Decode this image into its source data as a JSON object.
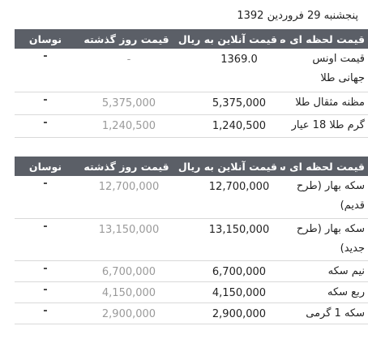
{
  "date": "پنجشنبه 29 فروردین 1392",
  "gold": {
    "headers": {
      "name": "قیمت لحظه ای طلا",
      "online": "قیمت آنلاین به ریال",
      "prev": "قیمت روز گذشته",
      "change": "نوسان"
    },
    "rows": [
      {
        "name": "قیمت اونس جهانی طلا",
        "online": "1369.0",
        "prev": "-",
        "change": "-"
      },
      {
        "name": "مظنه مثقال طلا",
        "online": "5,375,000",
        "prev": "5,375,000",
        "change": "-"
      },
      {
        "name": "گرم طلا 18 عیار",
        "online": "1,240,500",
        "prev": "1,240,500",
        "change": "-"
      }
    ]
  },
  "coin": {
    "headers": {
      "name": "قیمت لحظه ای سکه",
      "online": "قیمت آنلاین به ریال",
      "prev": "قیمت روز گذشته",
      "change": "نوسان"
    },
    "rows": [
      {
        "name": "سکه بهار (طرح قدیم)",
        "online": "12,700,000",
        "prev": "12,700,000",
        "change": "-"
      },
      {
        "name": "سکه بهار (طرح جدید)",
        "online": "13,150,000",
        "prev": "13,150,000",
        "change": "-"
      },
      {
        "name": "نیم سکه",
        "online": "6,700,000",
        "prev": "6,700,000",
        "change": "-"
      },
      {
        "name": "ربع سکه",
        "online": "4,150,000",
        "prev": "4,150,000",
        "change": "-"
      },
      {
        "name": "سکه 1 گرمی",
        "online": "2,900,000",
        "prev": "2,900,000",
        "change": "-"
      }
    ]
  }
}
